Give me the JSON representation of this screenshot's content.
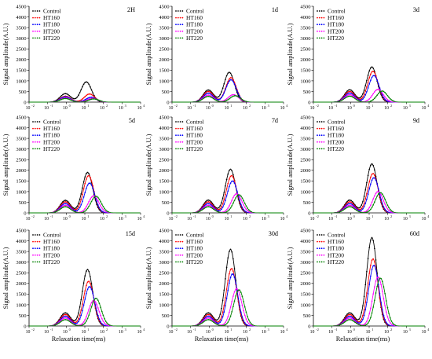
{
  "figure": {
    "ylabel": "Signal amplitude(A.U.)",
    "xlabel": "Relaxation time(ms)",
    "y_ticks": [
      "0",
      "500",
      "1000",
      "1500",
      "2000",
      "2500",
      "3000",
      "3500",
      "4000",
      "4500"
    ],
    "x_ticks": [
      "10",
      "10",
      "10",
      "10",
      "10",
      "10",
      "10"
    ],
    "x_tick_exponents": [
      "-2",
      "-1",
      "0",
      "1",
      "2",
      "3",
      "4"
    ],
    "series_colors": {
      "Control": "#000000",
      "HT160": "#ff0000",
      "HT180": "#0000ff",
      "HT200": "#ff00ff",
      "HT220": "#008000"
    }
  },
  "chart_data": [
    {
      "type": "line",
      "panel_label": "2H",
      "x_scale": "log",
      "xlim": [
        0.01,
        10000
      ],
      "ylim": [
        0,
        4500
      ],
      "xlabel": "",
      "ylabel": "Signal amplitude(A.U.)",
      "legend": [
        "Control",
        "HT160",
        "HT180",
        "HT200",
        "HT220"
      ],
      "legend_position": "top-left",
      "series": [
        {
          "name": "Control",
          "peaks": [
            {
              "center_ms": 0.9,
              "amplitude": 400
            },
            {
              "center_ms": 12,
              "amplitude": 950
            }
          ]
        },
        {
          "name": "HT160",
          "peaks": [
            {
              "center_ms": 0.9,
              "amplitude": 280
            },
            {
              "center_ms": 18,
              "amplitude": 380
            }
          ]
        },
        {
          "name": "HT180",
          "peaks": [
            {
              "center_ms": 0.9,
              "amplitude": 250
            },
            {
              "center_ms": 22,
              "amplitude": 230
            }
          ]
        },
        {
          "name": "HT200",
          "peaks": [
            {
              "center_ms": 0.9,
              "amplitude": 200
            },
            {
              "center_ms": 25,
              "amplitude": 180
            }
          ]
        },
        {
          "name": "HT220",
          "peaks": [
            {
              "center_ms": 0.9,
              "amplitude": 170
            },
            {
              "center_ms": 30,
              "amplitude": 150
            }
          ]
        }
      ]
    },
    {
      "type": "line",
      "panel_label": "1d",
      "x_scale": "log",
      "xlim": [
        0.01,
        10000
      ],
      "ylim": [
        0,
        4500
      ],
      "xlabel": "",
      "ylabel": "Signal amplitude(A.U.)",
      "legend": [
        "Control",
        "HT160",
        "HT180",
        "HT200",
        "HT220"
      ],
      "legend_position": "top-left",
      "series": [
        {
          "name": "Control",
          "peaks": [
            {
              "center_ms": 0.9,
              "amplitude": 570
            },
            {
              "center_ms": 12,
              "amplitude": 1400
            }
          ]
        },
        {
          "name": "HT160",
          "peaks": [
            {
              "center_ms": 0.9,
              "amplitude": 500
            },
            {
              "center_ms": 15,
              "amplitude": 1150
            }
          ]
        },
        {
          "name": "HT180",
          "peaks": [
            {
              "center_ms": 0.9,
              "amplitude": 420
            },
            {
              "center_ms": 15,
              "amplitude": 1050
            }
          ]
        },
        {
          "name": "HT200",
          "peaks": [
            {
              "center_ms": 0.9,
              "amplitude": 330
            },
            {
              "center_ms": 20,
              "amplitude": 350
            }
          ]
        },
        {
          "name": "HT220",
          "peaks": [
            {
              "center_ms": 0.9,
              "amplitude": 270
            },
            {
              "center_ms": 25,
              "amplitude": 300
            }
          ]
        }
      ]
    },
    {
      "type": "line",
      "panel_label": "3d",
      "x_scale": "log",
      "xlim": [
        0.01,
        10000
      ],
      "ylim": [
        0,
        4500
      ],
      "xlabel": "",
      "ylabel": "Signal amplitude(A.U.)",
      "legend": [
        "Control",
        "HT160",
        "HT180",
        "HT200",
        "HT220"
      ],
      "legend_position": "top-left",
      "series": [
        {
          "name": "Control",
          "peaks": [
            {
              "center_ms": 0.9,
              "amplitude": 580
            },
            {
              "center_ms": 14,
              "amplitude": 1650
            }
          ]
        },
        {
          "name": "HT160",
          "peaks": [
            {
              "center_ms": 0.9,
              "amplitude": 500
            },
            {
              "center_ms": 16,
              "amplitude": 1450
            }
          ]
        },
        {
          "name": "HT180",
          "peaks": [
            {
              "center_ms": 0.9,
              "amplitude": 430
            },
            {
              "center_ms": 18,
              "amplitude": 1250
            }
          ]
        },
        {
          "name": "HT200",
          "peaks": [
            {
              "center_ms": 0.9,
              "amplitude": 350
            },
            {
              "center_ms": 30,
              "amplitude": 600
            }
          ]
        },
        {
          "name": "HT220",
          "peaks": [
            {
              "center_ms": 0.9,
              "amplitude": 280
            },
            {
              "center_ms": 50,
              "amplitude": 520
            }
          ]
        }
      ]
    },
    {
      "type": "line",
      "panel_label": "5d",
      "x_scale": "log",
      "xlim": [
        0.01,
        10000
      ],
      "ylim": [
        0,
        4500
      ],
      "xlabel": "",
      "ylabel": "Signal amplitude(A.U.)",
      "legend": [
        "Control",
        "HT160",
        "HT180",
        "HT200",
        "HT220"
      ],
      "legend_position": "top-left",
      "series": [
        {
          "name": "Control",
          "peaks": [
            {
              "center_ms": 0.9,
              "amplitude": 590
            },
            {
              "center_ms": 14,
              "amplitude": 1900
            }
          ]
        },
        {
          "name": "HT160",
          "peaks": [
            {
              "center_ms": 0.9,
              "amplitude": 520
            },
            {
              "center_ms": 16,
              "amplitude": 1750
            }
          ]
        },
        {
          "name": "HT180",
          "peaks": [
            {
              "center_ms": 0.9,
              "amplitude": 440
            },
            {
              "center_ms": 18,
              "amplitude": 1400
            }
          ]
        },
        {
          "name": "HT200",
          "peaks": [
            {
              "center_ms": 0.9,
              "amplitude": 360
            },
            {
              "center_ms": 30,
              "amplitude": 800
            }
          ]
        },
        {
          "name": "HT220",
          "peaks": [
            {
              "center_ms": 0.9,
              "amplitude": 290
            },
            {
              "center_ms": 40,
              "amplitude": 780
            }
          ]
        }
      ]
    },
    {
      "type": "line",
      "panel_label": "7d",
      "x_scale": "log",
      "xlim": [
        0.01,
        10000
      ],
      "ylim": [
        0,
        4500
      ],
      "xlabel": "",
      "ylabel": "Signal amplitude(A.U.)",
      "legend": [
        "Control",
        "HT160",
        "HT180",
        "HT200",
        "HT220"
      ],
      "legend_position": "top-left",
      "series": [
        {
          "name": "Control",
          "peaks": [
            {
              "center_ms": 0.9,
              "amplitude": 600
            },
            {
              "center_ms": 14,
              "amplitude": 2050
            }
          ]
        },
        {
          "name": "HT160",
          "peaks": [
            {
              "center_ms": 0.9,
              "amplitude": 520
            },
            {
              "center_ms": 16,
              "amplitude": 1750
            }
          ]
        },
        {
          "name": "HT180",
          "peaks": [
            {
              "center_ms": 0.9,
              "amplitude": 440
            },
            {
              "center_ms": 18,
              "amplitude": 1500
            }
          ]
        },
        {
          "name": "HT200",
          "peaks": [
            {
              "center_ms": 0.9,
              "amplitude": 360
            },
            {
              "center_ms": 30,
              "amplitude": 900
            }
          ]
        },
        {
          "name": "HT220",
          "peaks": [
            {
              "center_ms": 0.9,
              "amplitude": 290
            },
            {
              "center_ms": 40,
              "amplitude": 850
            }
          ]
        }
      ]
    },
    {
      "type": "line",
      "panel_label": "9d",
      "x_scale": "log",
      "xlim": [
        0.01,
        10000
      ],
      "ylim": [
        0,
        4500
      ],
      "xlabel": "",
      "ylabel": "Signal amplitude(A.U.)",
      "legend": [
        "Control",
        "HT160",
        "HT180",
        "HT200",
        "HT220"
      ],
      "legend_position": "top-left",
      "series": [
        {
          "name": "Control",
          "peaks": [
            {
              "center_ms": 0.9,
              "amplitude": 600
            },
            {
              "center_ms": 14,
              "amplitude": 2300
            }
          ]
        },
        {
          "name": "HT160",
          "peaks": [
            {
              "center_ms": 0.9,
              "amplitude": 520
            },
            {
              "center_ms": 16,
              "amplitude": 1850
            }
          ]
        },
        {
          "name": "HT180",
          "peaks": [
            {
              "center_ms": 0.9,
              "amplitude": 440
            },
            {
              "center_ms": 18,
              "amplitude": 1650
            }
          ]
        },
        {
          "name": "HT200",
          "peaks": [
            {
              "center_ms": 0.9,
              "amplitude": 360
            },
            {
              "center_ms": 30,
              "amplitude": 1000
            }
          ]
        },
        {
          "name": "HT220",
          "peaks": [
            {
              "center_ms": 0.9,
              "amplitude": 290
            },
            {
              "center_ms": 40,
              "amplitude": 950
            }
          ]
        }
      ]
    },
    {
      "type": "line",
      "panel_label": "15d",
      "x_scale": "log",
      "xlim": [
        0.01,
        10000
      ],
      "ylim": [
        0,
        4500
      ],
      "xlabel": "Relaxation time(ms)",
      "ylabel": "Signal amplitude(A.U.)",
      "legend": [
        "Control",
        "HT160",
        "HT180",
        "HT200",
        "HT220"
      ],
      "legend_position": "top-left",
      "series": [
        {
          "name": "Control",
          "peaks": [
            {
              "center_ms": 0.9,
              "amplitude": 620
            },
            {
              "center_ms": 14,
              "amplitude": 2650
            }
          ]
        },
        {
          "name": "HT160",
          "peaks": [
            {
              "center_ms": 0.9,
              "amplitude": 540
            },
            {
              "center_ms": 16,
              "amplitude": 2100
            }
          ]
        },
        {
          "name": "HT180",
          "peaks": [
            {
              "center_ms": 0.9,
              "amplitude": 460
            },
            {
              "center_ms": 18,
              "amplitude": 1850
            }
          ]
        },
        {
          "name": "HT200",
          "peaks": [
            {
              "center_ms": 0.9,
              "amplitude": 380
            },
            {
              "center_ms": 30,
              "amplitude": 1200
            }
          ]
        },
        {
          "name": "HT220",
          "peaks": [
            {
              "center_ms": 0.9,
              "amplitude": 300
            },
            {
              "center_ms": 40,
              "amplitude": 1300
            }
          ]
        }
      ]
    },
    {
      "type": "line",
      "panel_label": "30d",
      "x_scale": "log",
      "xlim": [
        0.01,
        10000
      ],
      "ylim": [
        0,
        4500
      ],
      "xlabel": "Relaxation time(ms)",
      "ylabel": "Signal amplitude(A.U.)",
      "legend": [
        "Control",
        "HT160",
        "HT180",
        "HT200",
        "HT220"
      ],
      "legend_position": "top-left",
      "series": [
        {
          "name": "Control",
          "peaks": [
            {
              "center_ms": 0.9,
              "amplitude": 620
            },
            {
              "center_ms": 14,
              "amplitude": 3600
            }
          ]
        },
        {
          "name": "HT160",
          "peaks": [
            {
              "center_ms": 0.9,
              "amplitude": 540
            },
            {
              "center_ms": 16,
              "amplitude": 2700
            }
          ]
        },
        {
          "name": "HT180",
          "peaks": [
            {
              "center_ms": 0.9,
              "amplitude": 460
            },
            {
              "center_ms": 18,
              "amplitude": 2450
            }
          ]
        },
        {
          "name": "HT200",
          "peaks": [
            {
              "center_ms": 0.9,
              "amplitude": 380
            },
            {
              "center_ms": 30,
              "amplitude": 1750
            }
          ]
        },
        {
          "name": "HT220",
          "peaks": [
            {
              "center_ms": 0.9,
              "amplitude": 300
            },
            {
              "center_ms": 40,
              "amplitude": 1700
            }
          ]
        }
      ]
    },
    {
      "type": "line",
      "panel_label": "60d",
      "x_scale": "log",
      "xlim": [
        0.01,
        10000
      ],
      "ylim": [
        0,
        4500
      ],
      "xlabel": "Relaxation time(ms)",
      "ylabel": "Signal amplitude(A.U.)",
      "legend": [
        "Control",
        "HT160",
        "HT180",
        "HT200",
        "HT220"
      ],
      "legend_position": "top-left",
      "series": [
        {
          "name": "Control",
          "peaks": [
            {
              "center_ms": 0.9,
              "amplitude": 620
            },
            {
              "center_ms": 14,
              "amplitude": 4150
            }
          ]
        },
        {
          "name": "HT160",
          "peaks": [
            {
              "center_ms": 0.9,
              "amplitude": 540
            },
            {
              "center_ms": 16,
              "amplitude": 3150
            }
          ]
        },
        {
          "name": "HT180",
          "peaks": [
            {
              "center_ms": 0.9,
              "amplitude": 460
            },
            {
              "center_ms": 18,
              "amplitude": 2850
            }
          ]
        },
        {
          "name": "HT200",
          "peaks": [
            {
              "center_ms": 0.9,
              "amplitude": 380
            },
            {
              "center_ms": 30,
              "amplitude": 2300
            }
          ]
        },
        {
          "name": "HT220",
          "peaks": [
            {
              "center_ms": 0.9,
              "amplitude": 300
            },
            {
              "center_ms": 40,
              "amplitude": 2250
            }
          ]
        }
      ]
    }
  ]
}
